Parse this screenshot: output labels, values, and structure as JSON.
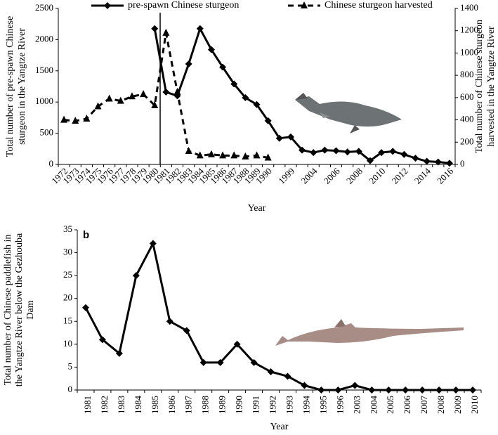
{
  "chart_data": [
    {
      "type": "line",
      "legend_position": "top",
      "categories": [
        1972,
        1973,
        1974,
        1975,
        1976,
        1977,
        1978,
        1979,
        1980,
        1981,
        1982,
        1983,
        1984,
        1985,
        1986,
        1987,
        1988,
        1989,
        1990,
        null,
        1999,
        null,
        2004,
        null,
        2006,
        null,
        2008,
        null,
        2010,
        null,
        2012,
        null,
        2014,
        null,
        2016
      ],
      "series": [
        {
          "name": "pre-spawn Chinese sturgeon",
          "color": "#000000",
          "marker": "diamond",
          "line_style": "solid",
          "values": [
            null,
            null,
            null,
            null,
            null,
            null,
            null,
            null,
            2176,
            1160,
            1100,
            1610,
            2176,
            1840,
            1560,
            1290,
            1070,
            960,
            700,
            420,
            440,
            230,
            190,
            230,
            220,
            200,
            210,
            60,
            190,
            210,
            160,
            100,
            50,
            40,
            20
          ]
        },
        {
          "name": "Chinese sturgeon harvested",
          "color": "#000000",
          "marker": "triangle",
          "line_style": "dashed",
          "axis": "y2",
          "values": [
            400,
            390,
            410,
            520,
            590,
            570,
            610,
            630,
            530,
            1180,
            650,
            120,
            80,
            90,
            80,
            80,
            70,
            80,
            60,
            null,
            null,
            null,
            null,
            null,
            null,
            null,
            null,
            null,
            null,
            null,
            null,
            null,
            null,
            null,
            null
          ]
        }
      ],
      "xlabel": "Year",
      "ylabel": [
        "Total number of pre-spawn Chinese",
        "sturgeon in the Yangtze River"
      ],
      "y2label": [
        "Total number of Chinese sturgeon",
        "harvested in the Yangtze River"
      ],
      "ylim": [
        0,
        2500
      ],
      "yticks": [
        0,
        500,
        1000,
        1500,
        2000,
        2500
      ],
      "y2lim": [
        0,
        1400
      ],
      "y2ticks": [
        0,
        200,
        400,
        600,
        800,
        1000,
        1200,
        1400
      ]
    },
    {
      "type": "line",
      "panel_label": "b",
      "categories": [
        1981,
        1982,
        1983,
        1984,
        1985,
        1986,
        1987,
        1988,
        1989,
        1990,
        1991,
        1992,
        1993,
        1994,
        1995,
        1996,
        2003,
        2004,
        2005,
        2006,
        2007,
        2008,
        2009,
        2010
      ],
      "values": [
        18,
        11,
        8,
        25,
        32,
        15,
        13,
        6,
        6,
        10,
        6,
        4,
        3,
        1,
        0,
        0,
        1,
        0,
        0,
        0,
        0,
        0,
        0,
        0
      ],
      "color": "#000000",
      "marker": "diamond",
      "xlabel": "Year",
      "ylabel": [
        "Total number of Chinese paddlefish in",
        "the Yangtze River below the Gezhouba",
        "Dam"
      ],
      "ylim": [
        0,
        35
      ],
      "yticks": [
        0,
        5,
        10,
        15,
        20,
        25,
        30,
        35
      ]
    }
  ]
}
